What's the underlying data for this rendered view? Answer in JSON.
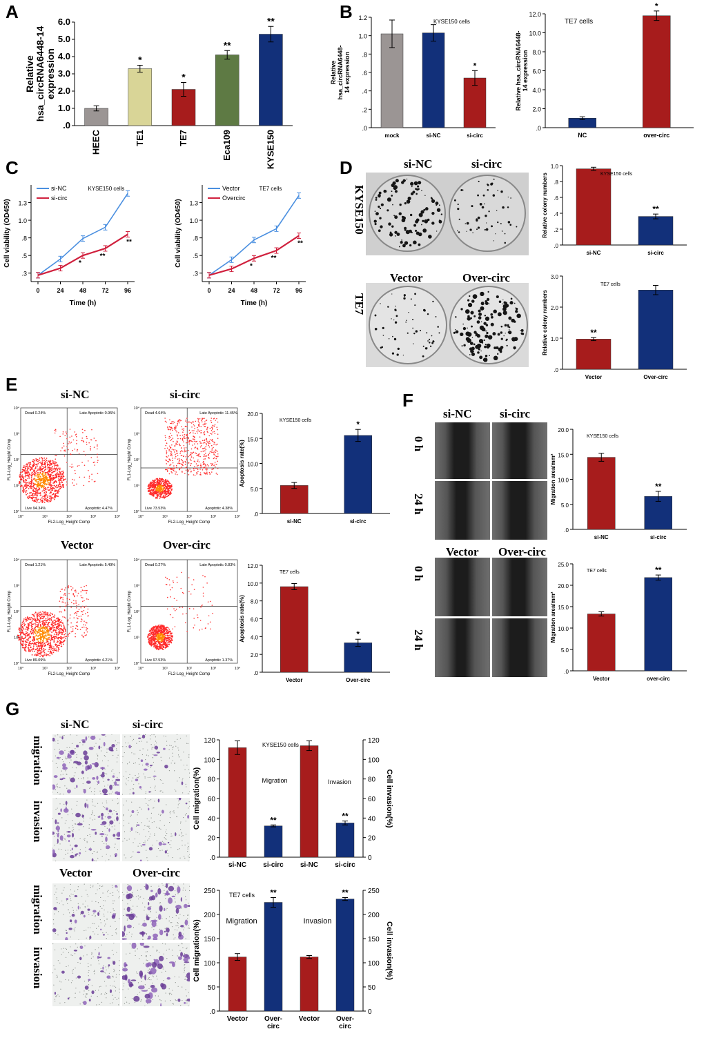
{
  "panels": {
    "A": "A",
    "B": "B",
    "C": "C",
    "D": "D",
    "E": "E",
    "F": "F",
    "G": "G"
  },
  "image_labels": {
    "D": {
      "kyse_left": "si-NC",
      "kyse_right": "si-circ",
      "kyse_row": "KYSE150",
      "te7_left": "Vector",
      "te7_right": "Over-circ",
      "te7_row": "TE7"
    },
    "E": {
      "top_left": "si-NC",
      "top_right": "si-circ",
      "bottom_left": "Vector",
      "bottom_right": "Over-circ"
    },
    "F": {
      "top_left": "si-NC",
      "top_right": "si-circ",
      "bottom_left": "Vector",
      "bottom_right": "Over-circ",
      "row0": "0 h",
      "row24": "24 h",
      "row0b": "0 h",
      "row24b": "24 h"
    },
    "G": {
      "top_left": "si-NC",
      "top_right": "si-circ",
      "bottom_left": "Vector",
      "bottom_right": "Over-circ",
      "mig": "migration",
      "inv": "invasion",
      "mig2": "migration",
      "inv2": "invasion"
    }
  },
  "flow_cytometry": {
    "si_nc": {
      "dead": "Dead 0.24%",
      "late": "Late Apoptotic 0.95%",
      "live": "Live 94.34%",
      "apop": "Apoptotic 4.47%"
    },
    "si_circ": {
      "dead": "Dead 4.64%",
      "late": "Late Apoptotic 11.45%",
      "live": "Live 73.53%",
      "apop": "Apoptotic 4.38%"
    },
    "vector": {
      "dead": "Dead 1.21%",
      "late": "Late Apoptotic 5.49%",
      "live": "Live 89.09%",
      "apop": "Apoptotic 4.21%"
    },
    "over": {
      "dead": "Dead 0.27%",
      "late": "Late Apoptotic 0.83%",
      "live": "Live 97.53%",
      "apop": "Apoptotic 1.37%"
    },
    "xaxis": "FL2-Log_Height Comp",
    "yaxis": "FL1-Log_Height Comp",
    "ticks": [
      "10°",
      "10¹",
      "10²",
      "10³",
      "10⁴"
    ]
  },
  "colors": {
    "gray": "#9b9594",
    "yellow": "#d9d597",
    "red": "#a71c1c",
    "green": "#5e7a44",
    "blue": "#12307a",
    "line_blue": "#4a8fe0",
    "line_red": "#d0203d"
  },
  "chart_data": [
    {
      "id": "A",
      "type": "bar",
      "categories": [
        "HEEC",
        "TE1",
        "TE7",
        "Eca109",
        "KYSE150"
      ],
      "values": [
        1.0,
        3.3,
        2.1,
        4.1,
        5.3
      ],
      "errors": [
        0.15,
        0.2,
        0.4,
        0.25,
        0.45
      ],
      "annotations": [
        "",
        "*",
        "*",
        "**",
        "**"
      ],
      "ylabel": "Relative hsa_circRNA6448-14 expression",
      "ylim": [
        0,
        6
      ],
      "yticks": [
        "0",
        "1.0",
        "2.0",
        "3.0",
        "4.0",
        "5.0",
        "6.0"
      ]
    },
    {
      "id": "B1",
      "type": "bar",
      "title": "KYSE150 cells",
      "categories": [
        "mock",
        "si-NC",
        "si-circ"
      ],
      "values": [
        1.02,
        1.03,
        0.54
      ],
      "errors": [
        0.15,
        0.09,
        0.08
      ],
      "annotations": [
        "",
        "",
        "*"
      ],
      "ylabel": "Relative hsa_circRNA6448-14 expression",
      "ylim": [
        0,
        1.2
      ],
      "yticks": [
        "0",
        ".2",
        ".4",
        ".6",
        ".8",
        "1.0",
        "1.2"
      ]
    },
    {
      "id": "B2",
      "type": "bar",
      "title": "TE7 cells",
      "categories": [
        "NC",
        "over-circ"
      ],
      "values": [
        1.0,
        11.8
      ],
      "errors": [
        0.15,
        0.5
      ],
      "annotations": [
        "",
        "*"
      ],
      "ylabel": "Relative hsa_circRNA6448-14 expression",
      "ylim": [
        0,
        12
      ],
      "yticks": [
        "0",
        "2.0",
        "4.0",
        "6.0",
        "8.0",
        "10.0",
        "12.0"
      ]
    },
    {
      "id": "C1",
      "type": "line",
      "title": "KYSE150 cells",
      "x": [
        0,
        24,
        48,
        72,
        96
      ],
      "series": [
        {
          "name": "si-NC",
          "values": [
            0.27,
            0.5,
            0.79,
            0.95,
            1.43
          ]
        },
        {
          "name": "si-circ",
          "values": [
            0.27,
            0.37,
            0.55,
            0.65,
            0.85
          ]
        }
      ],
      "annotations": [
        "",
        "",
        "*",
        "**",
        "**"
      ],
      "xlabel": "Time (h)",
      "ylabel": "Cell viability (OD450)",
      "ylim": [
        0.18,
        1.55
      ],
      "yticks": [
        ".3",
        ".5",
        ".8",
        "1.0",
        "1.3"
      ]
    },
    {
      "id": "C2",
      "type": "line",
      "title": "TE7 cells",
      "x": [
        0,
        24,
        48,
        72,
        96
      ],
      "series": [
        {
          "name": "Vector",
          "values": [
            0.27,
            0.49,
            0.77,
            0.93,
            1.4
          ]
        },
        {
          "name": "Overcirc",
          "values": [
            0.27,
            0.36,
            0.51,
            0.62,
            0.83
          ]
        }
      ],
      "annotations": [
        "",
        "",
        "*",
        "**",
        "**"
      ],
      "xlabel": "Time (h)",
      "ylabel": "Cell viability (OD450)",
      "ylim": [
        0.18,
        1.55
      ],
      "yticks": [
        ".3",
        ".5",
        ".8",
        "1.0",
        "1.3"
      ]
    },
    {
      "id": "D1",
      "type": "bar",
      "title": "KYSE150 cells",
      "categories": [
        "si-NC",
        "si-circ"
      ],
      "values": [
        0.96,
        0.36
      ],
      "errors": [
        0.02,
        0.03
      ],
      "annotations": [
        "",
        "**"
      ],
      "ylabel": "Relative colony numbers",
      "ylim": [
        0,
        1.0
      ],
      "yticks": [
        "0",
        ".2",
        ".4",
        ".6",
        ".8",
        "1.0"
      ]
    },
    {
      "id": "D2",
      "type": "bar",
      "title": "TE7 cells",
      "categories": [
        "Vector",
        "Over-circ"
      ],
      "values": [
        0.97,
        2.55
      ],
      "errors": [
        0.05,
        0.15
      ],
      "annotations": [
        "**",
        ""
      ],
      "ylabel": "Relative colony numbers",
      "ylim": [
        0,
        3.0
      ],
      "yticks": [
        "0",
        "1.0",
        "2.0",
        "3.0"
      ]
    },
    {
      "id": "E1",
      "type": "bar",
      "title": "KYSE150 cells",
      "categories": [
        "si-NC",
        "si-circ"
      ],
      "values": [
        5.6,
        15.6
      ],
      "errors": [
        0.6,
        1.2
      ],
      "annotations": [
        "",
        "*"
      ],
      "ylabel": "Apoptosis rate(%)",
      "ylim": [
        0,
        20
      ],
      "yticks": [
        "0",
        "5.0",
        "10.0",
        "15.0",
        "20.0"
      ]
    },
    {
      "id": "E2",
      "type": "bar",
      "title": "TE7 cells",
      "categories": [
        "Vector",
        "Over-circ"
      ],
      "values": [
        9.6,
        3.3
      ],
      "errors": [
        0.35,
        0.4
      ],
      "annotations": [
        "",
        "*"
      ],
      "ylabel": "Apoptosis rate(%)",
      "ylim": [
        0,
        12
      ],
      "yticks": [
        "0",
        "2.0",
        "4.0",
        "6.0",
        "8.0",
        "10.0",
        "12.0"
      ]
    },
    {
      "id": "F1",
      "type": "bar",
      "title": "KYSE150 cells",
      "categories": [
        "si-NC",
        "si-circ"
      ],
      "values": [
        14.4,
        6.6
      ],
      "errors": [
        0.8,
        1.0
      ],
      "annotations": [
        "",
        "**"
      ],
      "ylabel": "Migration area/mm²",
      "ylim": [
        0,
        20
      ],
      "yticks": [
        "0",
        "5.0",
        "10.0",
        "15.0",
        "20.0"
      ]
    },
    {
      "id": "F2",
      "type": "bar",
      "title": "TE7 cells",
      "categories": [
        "Vector",
        "over-circ"
      ],
      "values": [
        13.3,
        21.8
      ],
      "errors": [
        0.5,
        0.6
      ],
      "annotations": [
        "",
        "**"
      ],
      "ylabel": "Migration area/mm²",
      "ylim": [
        0,
        25
      ],
      "yticks": [
        "0",
        "5.0",
        "10.0",
        "15.0",
        "20.0",
        "25.0"
      ]
    },
    {
      "id": "G1",
      "type": "bar",
      "title": "KYSE150 cells",
      "categories": [
        "si-NC",
        "si-circ",
        "si-NC",
        "si-circ"
      ],
      "values": [
        112,
        32,
        114,
        35
      ],
      "errors": [
        7,
        1,
        5,
        2
      ],
      "annotations": [
        "",
        "**",
        "",
        "**"
      ],
      "group_labels": [
        "Migration",
        "Invasion"
      ],
      "ylabel": "Cell migration(%)",
      "y2label": "Cell invasion(%)",
      "ylim": [
        0,
        120
      ],
      "yticks": [
        "0",
        "20",
        "40",
        "60",
        "80",
        "100",
        "120"
      ]
    },
    {
      "id": "G2",
      "type": "bar",
      "title": "TE7 cells",
      "categories": [
        "Vector",
        "Over-\ncirc",
        "Vector",
        "Over-\ncirc"
      ],
      "values": [
        112,
        225,
        112,
        232
      ],
      "errors": [
        7,
        10,
        3,
        3
      ],
      "annotations": [
        "",
        "**",
        "",
        "**"
      ],
      "group_labels": [
        "Migration",
        "Invasion"
      ],
      "ylabel": "Cell migration(%)",
      "y2label": "Cell invasion(%)",
      "ylim": [
        0,
        250
      ],
      "yticks": [
        "0",
        "50",
        "100",
        "150",
        "200",
        "250"
      ]
    }
  ]
}
